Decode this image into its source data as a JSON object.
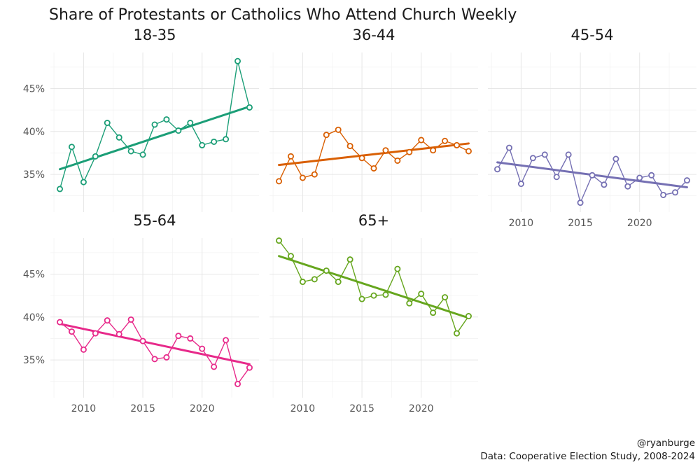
{
  "chart_data": {
    "type": "line",
    "title": "Share of Protestants or Catholics Who Attend Church Weekly",
    "x_ticks": [
      2010,
      2015,
      2020
    ],
    "y_ticks": [
      35,
      40,
      45
    ],
    "y_tick_labels": [
      "35%",
      "40%",
      "45%"
    ],
    "xlim": [
      2007.2,
      2024.8
    ],
    "ylim": [
      30.6,
      49.2
    ],
    "x": [
      2008,
      2009,
      2010,
      2011,
      2012,
      2013,
      2014,
      2015,
      2016,
      2017,
      2018,
      2019,
      2020,
      2021,
      2022,
      2023,
      2024
    ],
    "series": [
      {
        "name": "18-35",
        "color": "#1b9e77",
        "values": [
          33.3,
          38.2,
          34.1,
          37.1,
          41.0,
          39.3,
          37.7,
          37.3,
          40.8,
          41.4,
          40.1,
          41.0,
          38.4,
          38.8,
          39.1,
          48.2,
          42.8
        ],
        "trend": [
          35.6,
          42.9
        ]
      },
      {
        "name": "36-44",
        "color": "#d95f02",
        "values": [
          34.2,
          37.1,
          34.6,
          35.0,
          39.6,
          40.2,
          38.3,
          36.9,
          35.7,
          37.8,
          36.6,
          37.6,
          39.0,
          37.8,
          38.9,
          38.4,
          37.7
        ],
        "trend": [
          36.1,
          38.6
        ]
      },
      {
        "name": "45-54",
        "color": "#7570b3",
        "values": [
          35.6,
          38.1,
          33.9,
          36.9,
          37.3,
          34.7,
          37.3,
          31.7,
          34.9,
          33.8,
          36.8,
          33.6,
          34.6,
          34.9,
          32.6,
          32.9,
          34.3
        ],
        "trend": [
          36.4,
          33.5
        ]
      },
      {
        "name": "55-64",
        "color": "#e7298a",
        "values": [
          39.4,
          38.3,
          36.2,
          38.1,
          39.6,
          38.0,
          39.7,
          37.2,
          35.1,
          35.3,
          37.8,
          37.5,
          36.3,
          34.2,
          37.3,
          32.2,
          34.1
        ],
        "trend": [
          39.2,
          34.5
        ]
      },
      {
        "name": "65+",
        "color": "#66a61e",
        "values": [
          48.9,
          47.1,
          44.1,
          44.4,
          45.4,
          44.1,
          46.7,
          42.1,
          42.5,
          42.6,
          45.6,
          41.6,
          42.7,
          40.5,
          42.3,
          38.1,
          40.1
        ],
        "trend": [
          47.1,
          39.9
        ]
      }
    ],
    "caption_lines": [
      "@ryanburge",
      "Data: Cooperative Election Study, 2008-2024"
    ]
  }
}
